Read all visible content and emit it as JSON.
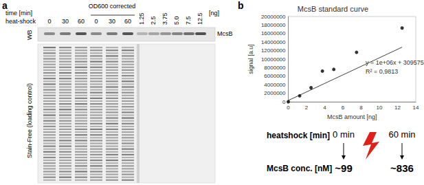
{
  "chart_data": {
    "type": "scatter",
    "title": "McsB standard curve",
    "x_label": "McsB amount [ng]",
    "y_label": "signal [a.u]",
    "x": [
      0,
      1.25,
      2.5,
      3.75,
      5,
      7.5,
      12.5
    ],
    "values": [
      0,
      1400000,
      3300000,
      7200000,
      7600000,
      11600000,
      17300000
    ],
    "color": "#000000",
    "marker": "circle",
    "xlim": [
      0,
      14
    ],
    "xticks": [
      0,
      2,
      4,
      6,
      8,
      10,
      12,
      14
    ],
    "ylim": [
      0,
      20000000
    ],
    "yticks": [
      0,
      2000000,
      4000000,
      6000000,
      8000000,
      10000000,
      12000000,
      14000000,
      16000000,
      18000000,
      20000000
    ],
    "grid": false,
    "trendline": {
      "slope": 1000000,
      "intercept": 309575,
      "equation": "y = 1e+06x + 309575",
      "r_squared": {
        "value": 0.9813,
        "label": "R² = 0,9813"
      },
      "color": "#404040"
    }
  },
  "panel_b_label": "b",
  "panel_a": {
    "label": "a",
    "time_label": "time [min]",
    "heatshock_label": "heat-shock",
    "group_label": "OD600 corrected",
    "lanes": [
      "0",
      "30",
      "60",
      "0",
      "30",
      "60"
    ],
    "standards": [
      "1.25",
      "2.5",
      "3.75",
      "5.0",
      "7.5",
      "12.5"
    ],
    "standards_unit": "[ng]",
    "wb_label": "WB",
    "band_label": "McsB",
    "gel_label": "Stain-Free (loading control)"
  },
  "summary": {
    "row_labels": [
      "heatshock [min]",
      "McsB conc. [nM]"
    ],
    "columns": [
      {
        "time": "0 min",
        "conc": "~99"
      },
      {
        "time": "60 min",
        "conc": "~836"
      }
    ]
  }
}
